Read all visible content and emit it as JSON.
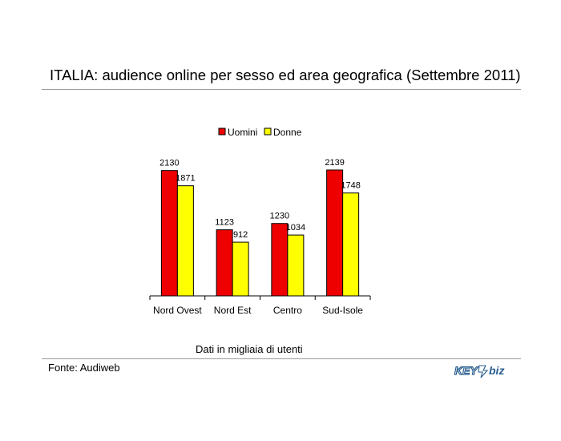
{
  "title": "ITALIA: audience online per sesso ed area geografica (Settembre 2011)",
  "caption": "Dati in migliaia di utenti",
  "source": "Fonte: Audiweb",
  "logo": {
    "part1": "KEY",
    "part2": "biz"
  },
  "colors": {
    "uomini": "#ee0000",
    "donne": "#ffff00",
    "axis": "#000000"
  },
  "chart_data": {
    "type": "bar",
    "categories": [
      "Nord Ovest",
      "Nord Est",
      "Centro",
      "Sud-Isole"
    ],
    "series": [
      {
        "name": "Uomini",
        "values": [
          2130,
          1123,
          1230,
          2139
        ],
        "labels": [
          "2130",
          "1123",
          "1230",
          "2139"
        ]
      },
      {
        "name": "Donne",
        "values": [
          1871,
          912,
          1034,
          1748
        ],
        "labels": [
          "1871",
          "912",
          "1034",
          "1748"
        ]
      }
    ],
    "ylim": [
      0,
      2139
    ],
    "legend": "top",
    "grid": false
  }
}
